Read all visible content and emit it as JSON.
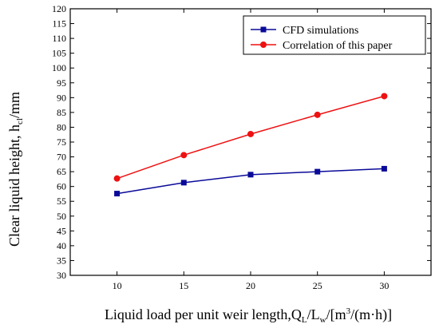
{
  "chart_data": {
    "type": "line",
    "x": [
      10,
      15,
      20,
      25,
      30
    ],
    "xlim": [
      6.5,
      33.5
    ],
    "ylim": [
      30,
      120
    ],
    "xticks": [
      10,
      15,
      20,
      25,
      30
    ],
    "yticks": [
      30,
      35,
      40,
      45,
      50,
      55,
      60,
      65,
      70,
      75,
      80,
      85,
      90,
      95,
      100,
      105,
      110,
      115,
      120
    ],
    "xlabel": {
      "main": "Liquid load per unit weir length,Q",
      "sub1": "L",
      "mid": "/L",
      "sub2": "w",
      "unit_a": "/[m",
      "sup": "3",
      "unit_b": "/(m·h)]"
    },
    "ylabel": {
      "main": "Clear liquid height, h",
      "sub": "cl",
      "unit": "/mm"
    },
    "grid": false,
    "legend_position": "top-right",
    "series": [
      {
        "name": "CFD simulations",
        "color": "#0a0a99",
        "marker": "square",
        "values": [
          57.6,
          61.3,
          64.0,
          65.0,
          66.0
        ]
      },
      {
        "name": "Correlation of this paper",
        "color": "#ee1111",
        "marker": "circle",
        "values": [
          62.7,
          70.6,
          77.7,
          84.2,
          90.5
        ]
      }
    ]
  }
}
